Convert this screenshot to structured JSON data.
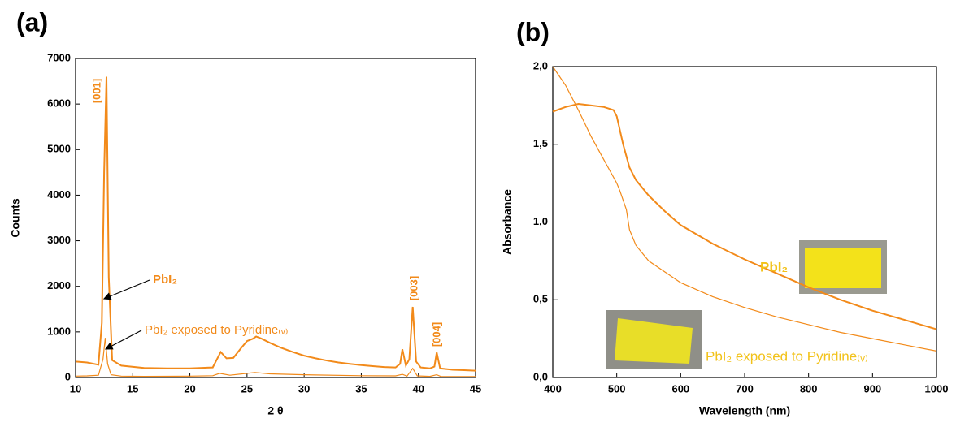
{
  "chart_data": [
    {
      "type": "line",
      "title": "(a)",
      "x_label": "2 θ",
      "y_label": "Counts",
      "xlim": [
        10,
        45
      ],
      "xticks": [
        10,
        15,
        20,
        25,
        30,
        35,
        40,
        45
      ],
      "ylim": [
        0,
        7000
      ],
      "yticks": [
        0,
        1000,
        2000,
        3000,
        4000,
        5000,
        6000,
        7000
      ],
      "label_color": "#f28a1a",
      "annotations": [
        "[001]",
        "[003]",
        "[004]"
      ],
      "series": [
        {
          "name": "PbI₂",
          "color": "#f28a1a",
          "x": [
            10,
            11,
            12,
            12.3,
            12.5,
            12.7,
            12.9,
            13.2,
            14,
            16,
            18,
            20,
            22,
            22.7,
            23.2,
            23.8,
            24.5,
            25,
            25.5,
            25.8,
            26.3,
            27,
            28,
            29,
            30,
            31,
            32,
            33,
            34,
            35,
            36,
            37,
            38,
            38.4,
            38.6,
            38.9,
            39.2,
            39.5,
            39.8,
            40.2,
            41,
            41.4,
            41.6,
            41.9,
            43,
            44,
            45
          ],
          "values": [
            350,
            330,
            280,
            1200,
            4500,
            6600,
            2200,
            380,
            260,
            210,
            200,
            200,
            220,
            560,
            420,
            430,
            650,
            800,
            850,
            900,
            850,
            760,
            650,
            560,
            480,
            420,
            370,
            330,
            300,
            270,
            250,
            230,
            220,
            300,
            620,
            260,
            400,
            1550,
            350,
            220,
            200,
            240,
            550,
            200,
            170,
            160,
            150
          ]
        },
        {
          "name": "PbI₂ exposed to Pyridine₍ᵥ₎",
          "color": "#f28a1a",
          "x": [
            10,
            11,
            12,
            12.4,
            12.6,
            12.8,
            13.1,
            14,
            16,
            20,
            22,
            22.6,
            23.5,
            25,
            25.7,
            27,
            30,
            35,
            38,
            38.6,
            39,
            39.5,
            39.9,
            41,
            41.6,
            42,
            45
          ],
          "values": [
            30,
            35,
            50,
            400,
            870,
            300,
            60,
            30,
            25,
            30,
            40,
            90,
            50,
            90,
            110,
            80,
            60,
            40,
            35,
            70,
            30,
            200,
            35,
            25,
            60,
            20,
            20
          ]
        }
      ]
    },
    {
      "type": "line",
      "title": "(b)",
      "x_label": "Wavelength (nm)",
      "y_label": "Absorbance",
      "xlim": [
        400,
        1000
      ],
      "xticks": [
        400,
        500,
        600,
        700,
        800,
        900,
        1000
      ],
      "ylim": [
        0,
        2
      ],
      "yticks": [
        {
          "value": 0,
          "label": "0,0"
        },
        {
          "value": 0.5,
          "label": "0,5"
        },
        {
          "value": 1,
          "label": "1,0"
        },
        {
          "value": 1.5,
          "label": "1,5"
        },
        {
          "value": 2,
          "label": "2,0"
        }
      ],
      "label_color": "#f2c21a",
      "series": [
        {
          "name": "PbI₂",
          "color": "#f28a1a",
          "x": [
            400,
            420,
            440,
            460,
            480,
            495,
            500,
            510,
            520,
            530,
            550,
            575,
            600,
            650,
            700,
            750,
            800,
            850,
            900,
            950,
            1000
          ],
          "values": [
            1.71,
            1.74,
            1.76,
            1.75,
            1.74,
            1.72,
            1.68,
            1.5,
            1.35,
            1.27,
            1.17,
            1.07,
            0.98,
            0.86,
            0.76,
            0.67,
            0.58,
            0.5,
            0.43,
            0.37,
            0.31
          ]
        },
        {
          "name": "PbI₂ exposed to Pyridine₍ᵥ₎",
          "color": "#f28a1a",
          "x": [
            400,
            420,
            440,
            460,
            480,
            500,
            505,
            515,
            520,
            530,
            550,
            600,
            650,
            700,
            750,
            800,
            850,
            900,
            950,
            1000
          ],
          "values": [
            2.0,
            1.88,
            1.72,
            1.55,
            1.4,
            1.25,
            1.2,
            1.08,
            0.95,
            0.85,
            0.75,
            0.61,
            0.52,
            0.45,
            0.39,
            0.34,
            0.29,
            0.25,
            0.21,
            0.17
          ]
        }
      ]
    }
  ]
}
